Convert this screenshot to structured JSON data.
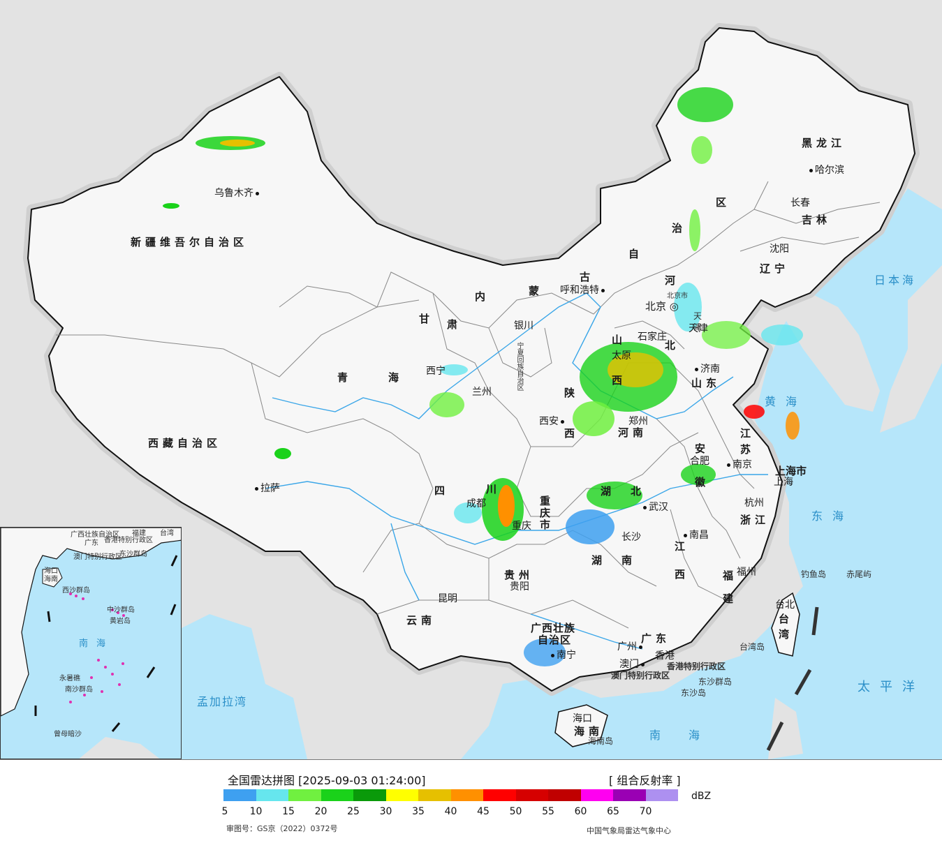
{
  "legend": {
    "title": "全国雷达拼图 [2025-09-03 01:24:00]",
    "product": "[ 组合反射率 ]",
    "unit": "dBZ",
    "colors": [
      "#3ea0f0",
      "#66e6ee",
      "#70f040",
      "#1ad21a",
      "#0a9a0a",
      "#ffff00",
      "#e6c000",
      "#ff9000",
      "#ff0000",
      "#d60000",
      "#c00000",
      "#ff00f0",
      "#9a00b4",
      "#ad90f0"
    ],
    "ticks": [
      "5",
      "10",
      "15",
      "20",
      "25",
      "30",
      "35",
      "40",
      "45",
      "50",
      "55",
      "60",
      "65",
      "70"
    ],
    "approval_no": "审图号：GS京（2022）0372号",
    "producer": "中国气象局雷达气象中心"
  },
  "map": {
    "colors": {
      "ocean": "#b6e6fa",
      "land": "#f7f7f7",
      "outside": "#e3e3e3",
      "border": "#111111",
      "province_line": "#888888",
      "river": "#3aa6e8"
    },
    "provinces": [
      {
        "id": "xinjiang",
        "text": "新疆维吾尔自治区"
      },
      {
        "id": "xizang",
        "text": "西藏自治区"
      },
      {
        "id": "qinghai-1",
        "text": "青"
      },
      {
        "id": "qinghai-2",
        "text": "海"
      },
      {
        "id": "gansu-1",
        "text": "甘"
      },
      {
        "id": "gansu-2",
        "text": "肃"
      },
      {
        "id": "neimenggu-1",
        "text": "内"
      },
      {
        "id": "neimenggu-2",
        "text": "蒙"
      },
      {
        "id": "neimenggu-3",
        "text": "古"
      },
      {
        "id": "neimenggu-4",
        "text": "自"
      },
      {
        "id": "neimenggu-5",
        "text": "治"
      },
      {
        "id": "neimenggu-6",
        "text": "区"
      },
      {
        "id": "heilongjiang",
        "text": "黑龙江"
      },
      {
        "id": "jilin",
        "text": "吉林"
      },
      {
        "id": "liaoning",
        "text": "辽宁"
      },
      {
        "id": "hebei-1",
        "text": "河"
      },
      {
        "id": "hebei-2",
        "text": "北"
      },
      {
        "id": "shanxi-1",
        "text": "山"
      },
      {
        "id": "shanxi-2",
        "text": "西"
      },
      {
        "id": "shaanxi-1",
        "text": "陕"
      },
      {
        "id": "shaanxi-2",
        "text": "西"
      },
      {
        "id": "ningxia",
        "text": "宁夏回族自治区"
      },
      {
        "id": "shandong",
        "text": "山东"
      },
      {
        "id": "henan",
        "text": "河南"
      },
      {
        "id": "jiangsu-1",
        "text": "江"
      },
      {
        "id": "jiangsu-2",
        "text": "苏"
      },
      {
        "id": "anhui-1",
        "text": "安"
      },
      {
        "id": "anhui-2",
        "text": "徽"
      },
      {
        "id": "shanghai",
        "text": "上海市"
      },
      {
        "id": "zhejiang",
        "text": "浙江"
      },
      {
        "id": "hubei-1",
        "text": "湖"
      },
      {
        "id": "hubei-2",
        "text": "北"
      },
      {
        "id": "hunan-1",
        "text": "湖"
      },
      {
        "id": "hunan-2",
        "text": "南"
      },
      {
        "id": "jiangxi-1",
        "text": "江"
      },
      {
        "id": "jiangxi-2",
        "text": "西"
      },
      {
        "id": "fujian-1",
        "text": "福"
      },
      {
        "id": "fujian-2",
        "text": "建"
      },
      {
        "id": "sichuan-1",
        "text": "四"
      },
      {
        "id": "sichuan-2",
        "text": "川"
      },
      {
        "id": "chongqing",
        "text": "重庆市"
      },
      {
        "id": "guizhou",
        "text": "贵州"
      },
      {
        "id": "yunnan",
        "text": "云南"
      },
      {
        "id": "guangxi-1",
        "text": "广西壮族"
      },
      {
        "id": "guangxi-2",
        "text": "自治区"
      },
      {
        "id": "guangdong",
        "text": "广东"
      },
      {
        "id": "hainan",
        "text": "海南"
      },
      {
        "id": "taiwan-1",
        "text": "台"
      },
      {
        "id": "taiwan-2",
        "text": "湾"
      },
      {
        "id": "hk",
        "text": "香港特别行政区"
      },
      {
        "id": "macau",
        "text": "澳门特别行政区"
      },
      {
        "id": "tianjin-1",
        "text": "天"
      },
      {
        "id": "tianjin-2",
        "text": "津"
      },
      {
        "id": "beijing-city",
        "text": "北京市"
      }
    ],
    "cities": [
      {
        "id": "urumqi",
        "text": "乌鲁木齐"
      },
      {
        "id": "lhasa",
        "text": "拉萨"
      },
      {
        "id": "xining",
        "text": "西宁"
      },
      {
        "id": "lanzhou",
        "text": "兰州"
      },
      {
        "id": "yinchuan",
        "text": "银川"
      },
      {
        "id": "hohhot",
        "text": "呼和浩特"
      },
      {
        "id": "harbin",
        "text": "哈尔滨"
      },
      {
        "id": "changchun",
        "text": "长春"
      },
      {
        "id": "shenyang",
        "text": "沈阳"
      },
      {
        "id": "beijing",
        "text": "北京"
      },
      {
        "id": "tianjin",
        "text": "天津"
      },
      {
        "id": "shijiazhuang",
        "text": "石家庄"
      },
      {
        "id": "taiyuan",
        "text": "太原"
      },
      {
        "id": "jinan",
        "text": "济南"
      },
      {
        "id": "zhengzhou",
        "text": "郑州"
      },
      {
        "id": "xian",
        "text": "西安"
      },
      {
        "id": "hefei",
        "text": "合肥"
      },
      {
        "id": "nanjing",
        "text": "南京"
      },
      {
        "id": "shanghai",
        "text": "上海"
      },
      {
        "id": "hangzhou",
        "text": "杭州"
      },
      {
        "id": "wuhan",
        "text": "武汉"
      },
      {
        "id": "changsha",
        "text": "长沙"
      },
      {
        "id": "nanchang",
        "text": "南昌"
      },
      {
        "id": "fuzhou",
        "text": "福州"
      },
      {
        "id": "taipei",
        "text": "台北"
      },
      {
        "id": "chengdu",
        "text": "成都"
      },
      {
        "id": "chongqing",
        "text": "重庆"
      },
      {
        "id": "guiyang",
        "text": "贵阳"
      },
      {
        "id": "kunming",
        "text": "昆明"
      },
      {
        "id": "nanning",
        "text": "南宁"
      },
      {
        "id": "guangzhou",
        "text": "广州"
      },
      {
        "id": "hongkong",
        "text": "香港"
      },
      {
        "id": "macau",
        "text": "澳门"
      },
      {
        "id": "haikou",
        "text": "海口"
      }
    ],
    "seas": [
      {
        "id": "japan-sea",
        "text": "日本海"
      },
      {
        "id": "yellow-sea",
        "text": "黄海"
      },
      {
        "id": "east-sea",
        "text": "东海"
      },
      {
        "id": "pacific",
        "text": "太平洋"
      },
      {
        "id": "south-sea",
        "text": "南海"
      },
      {
        "id": "bengal",
        "text": "孟加拉湾"
      }
    ],
    "islands": [
      {
        "id": "diaoyu",
        "text": "钓鱼岛"
      },
      {
        "id": "chiwei",
        "text": "赤尾屿"
      },
      {
        "id": "taiwan-strait-isl",
        "text": "台湾岛"
      },
      {
        "id": "dongsha-group",
        "text": "东沙群岛"
      },
      {
        "id": "dongsha-isl",
        "text": "东沙岛"
      },
      {
        "id": "hainan-isl",
        "text": "海南岛"
      }
    ],
    "inset_labels": [
      {
        "id": "guangxi-zz",
        "text": "广西壮族自治区"
      },
      {
        "id": "guangdong",
        "text": "广东"
      },
      {
        "id": "fujian",
        "text": "福建"
      },
      {
        "id": "taiwan",
        "text": "台湾"
      },
      {
        "id": "hk",
        "text": "香港特别行政区"
      },
      {
        "id": "macau",
        "text": "澳门特别行政区"
      },
      {
        "id": "dongsha",
        "text": "东沙群岛"
      },
      {
        "id": "haikou",
        "text": "海口"
      },
      {
        "id": "hainan",
        "text": "海南"
      },
      {
        "id": "xisha",
        "text": "西沙群岛"
      },
      {
        "id": "zhongsha",
        "text": "中沙群岛"
      },
      {
        "id": "huangyan",
        "text": "黄岩岛"
      },
      {
        "id": "south-sea",
        "text": "南海"
      },
      {
        "id": "yongshu",
        "text": "永暑礁"
      },
      {
        "id": "nansha",
        "text": "南沙群岛"
      },
      {
        "id": "zengmu",
        "text": "曾母暗沙"
      }
    ]
  }
}
